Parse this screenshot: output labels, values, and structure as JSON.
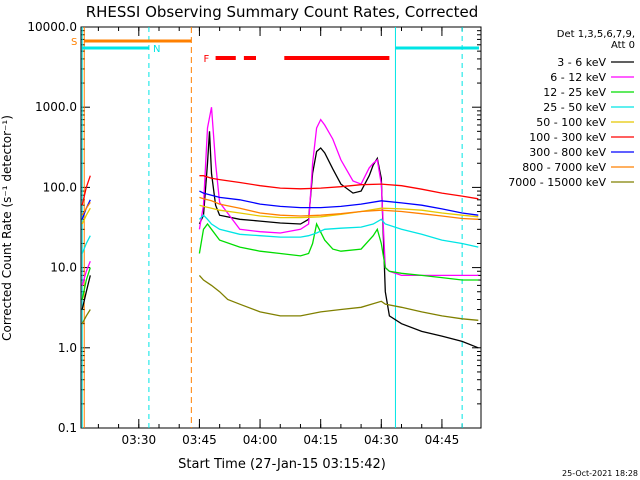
{
  "chart_data": {
    "type": "line",
    "title": "RHESSI Observing Summary Count Rates, Corrected",
    "xlabel": "Start Time (27-Jan-15 03:15:42)",
    "ylabel": "Corrected Count Rate (s⁻¹ detector⁻¹)",
    "y_scale": "log",
    "ylim": [
      0.1,
      10000
    ],
    "xlim": [
      "03:15:42",
      "04:54:40"
    ],
    "yticks": [
      "10000.0",
      "1000.0",
      "100.0",
      "10.0",
      "1.0",
      "0.1"
    ],
    "xticks": [
      "03:30",
      "03:45",
      "04:00",
      "04:15",
      "04:30",
      "04:45"
    ],
    "legend_header": [
      "Det 1,3,5,6,7,9,",
      "Att 0"
    ],
    "legend_position": "right",
    "timestamp": "25-Oct-2021 18:28",
    "flags": {
      "s_label": "S",
      "n_label": "N",
      "f_label": "F",
      "s_color": "#ff8000",
      "n_color": "#00e5e5",
      "f_color": "#ff0000"
    },
    "series": [
      {
        "name": "3 - 6 keV",
        "color": "#000000",
        "x": [
          "03:16",
          "03:17",
          "03:18",
          "03:45",
          "03:46",
          "03:47",
          "03:47:30",
          "03:48",
          "03:49",
          "03:50",
          "03:55",
          "04:00",
          "04:05",
          "04:10",
          "04:12",
          "04:13",
          "04:14",
          "04:15",
          "04:16",
          "04:18",
          "04:20",
          "04:23",
          "04:25",
          "04:27",
          "04:28",
          "04:29",
          "04:30",
          "04:31",
          "04:32",
          "04:35",
          "04:40",
          "04:45",
          "04:50",
          "04:54"
        ],
        "y": [
          3,
          5,
          8,
          35,
          45,
          200,
          500,
          150,
          60,
          45,
          40,
          38,
          36,
          35,
          40,
          150,
          280,
          310,
          270,
          170,
          110,
          85,
          90,
          140,
          190,
          230,
          130,
          5,
          2.5,
          2,
          1.6,
          1.4,
          1.2,
          1.0
        ]
      },
      {
        "name": "6 - 12 keV",
        "color": "#ff00ff",
        "x": [
          "03:16",
          "03:17",
          "03:18",
          "03:45",
          "03:46",
          "03:47",
          "03:48",
          "03:49",
          "03:50",
          "03:55",
          "04:00",
          "04:05",
          "04:10",
          "04:12",
          "04:13",
          "04:14",
          "04:15",
          "04:16",
          "04:18",
          "04:20",
          "04:23",
          "04:25",
          "04:27",
          "04:28",
          "04:29",
          "04:30",
          "04:31",
          "04:32",
          "04:35",
          "04:40",
          "04:45",
          "04:50",
          "04:54"
        ],
        "y": [
          6,
          9,
          12,
          30,
          60,
          550,
          1000,
          200,
          65,
          30,
          28,
          27,
          30,
          35,
          200,
          550,
          700,
          600,
          400,
          220,
          120,
          110,
          175,
          200,
          220,
          110,
          10,
          9,
          8,
          8,
          8,
          8,
          8
        ]
      },
      {
        "name": "12 - 25 keV",
        "color": "#00dd00",
        "x": [
          "03:16",
          "03:17",
          "03:18",
          "03:45",
          "03:46",
          "03:47",
          "03:48",
          "03:50",
          "03:55",
          "04:00",
          "04:05",
          "04:10",
          "04:12",
          "04:13",
          "04:14",
          "04:16",
          "04:18",
          "04:20",
          "04:25",
          "04:28",
          "04:29",
          "04:30",
          "04:31",
          "04:32",
          "04:35",
          "04:40",
          "04:45",
          "04:50",
          "04:54"
        ],
        "y": [
          4,
          7,
          10,
          15,
          30,
          35,
          30,
          22,
          18,
          16,
          15,
          14,
          15,
          20,
          35,
          22,
          17,
          16,
          17,
          25,
          30,
          20,
          10,
          9,
          8.5,
          8,
          7.5,
          7,
          7
        ]
      },
      {
        "name": "25 - 50 keV",
        "color": "#00e5e5",
        "x": [
          "03:16",
          "03:17",
          "03:18",
          "03:45",
          "03:46",
          "03:47",
          "03:48",
          "03:50",
          "03:55",
          "04:00",
          "04:05",
          "04:10",
          "04:12",
          "04:14",
          "04:16",
          "04:20",
          "04:25",
          "04:28",
          "04:30",
          "04:31",
          "04:35",
          "04:40",
          "04:45",
          "04:50",
          "04:54"
        ],
        "y": [
          15,
          20,
          25,
          40,
          45,
          40,
          35,
          30,
          26,
          25,
          24,
          24,
          25,
          27,
          30,
          31,
          32,
          35,
          40,
          35,
          30,
          26,
          22,
          20,
          18
        ]
      },
      {
        "name": "50 - 100 keV",
        "color": "#e5c800",
        "x": [
          "03:16",
          "03:17",
          "03:18",
          "03:45",
          "03:46",
          "03:48",
          "03:50",
          "03:55",
          "04:00",
          "04:05",
          "04:10",
          "04:15",
          "04:20",
          "04:25",
          "04:30",
          "04:35",
          "04:40",
          "04:45",
          "04:50",
          "04:54"
        ],
        "y": [
          35,
          45,
          55,
          60,
          58,
          55,
          52,
          48,
          44,
          42,
          42,
          43,
          46,
          50,
          55,
          54,
          52,
          48,
          45,
          43
        ]
      },
      {
        "name": "100 - 300 keV",
        "color": "#ff0000",
        "x": [
          "03:16",
          "03:17",
          "03:18",
          "03:45",
          "03:46",
          "03:48",
          "03:50",
          "03:55",
          "04:00",
          "04:05",
          "04:10",
          "04:15",
          "04:20",
          "04:25",
          "04:30",
          "04:35",
          "04:40",
          "04:45",
          "04:50",
          "04:54"
        ],
        "y": [
          60,
          100,
          140,
          140,
          140,
          130,
          125,
          115,
          105,
          98,
          96,
          98,
          102,
          108,
          110,
          105,
          95,
          85,
          78,
          72
        ]
      },
      {
        "name": "300 - 800 keV",
        "color": "#0000ff",
        "x": [
          "03:16",
          "03:17",
          "03:18",
          "03:45",
          "03:46",
          "03:48",
          "03:50",
          "03:55",
          "04:00",
          "04:05",
          "04:10",
          "04:15",
          "04:20",
          "04:25",
          "04:30",
          "04:35",
          "04:40",
          "04:45",
          "04:50",
          "04:54"
        ],
        "y": [
          40,
          55,
          70,
          90,
          85,
          80,
          75,
          70,
          62,
          58,
          56,
          56,
          58,
          62,
          68,
          64,
          60,
          54,
          48,
          45
        ]
      },
      {
        "name": "800 - 7000 keV",
        "color": "#ff8000",
        "x": [
          "03:16",
          "03:17",
          "03:18",
          "03:45",
          "03:46",
          "03:48",
          "03:50",
          "03:55",
          "04:00",
          "04:05",
          "04:10",
          "04:15",
          "04:20",
          "04:25",
          "04:30",
          "04:35",
          "04:40",
          "04:45",
          "04:50",
          "04:54"
        ],
        "y": [
          45,
          55,
          65,
          75,
          72,
          68,
          62,
          55,
          48,
          45,
          44,
          45,
          47,
          50,
          52,
          50,
          47,
          44,
          41,
          40
        ]
      },
      {
        "name": "7000 - 15000 keV",
        "color": "#808000",
        "x": [
          "03:16",
          "03:17",
          "03:18",
          "03:45",
          "03:46",
          "03:48",
          "03:50",
          "03:52",
          "03:55",
          "04:00",
          "04:05",
          "04:10",
          "04:15",
          "04:20",
          "04:25",
          "04:30",
          "04:31",
          "04:35",
          "04:40",
          "04:45",
          "04:50",
          "04:54"
        ],
        "y": [
          2,
          2.5,
          3,
          8,
          7,
          6,
          5,
          4,
          3.5,
          2.8,
          2.5,
          2.5,
          2.8,
          3,
          3.2,
          3.8,
          3.5,
          3.2,
          2.8,
          2.5,
          2.3,
          2.2
        ]
      }
    ]
  }
}
